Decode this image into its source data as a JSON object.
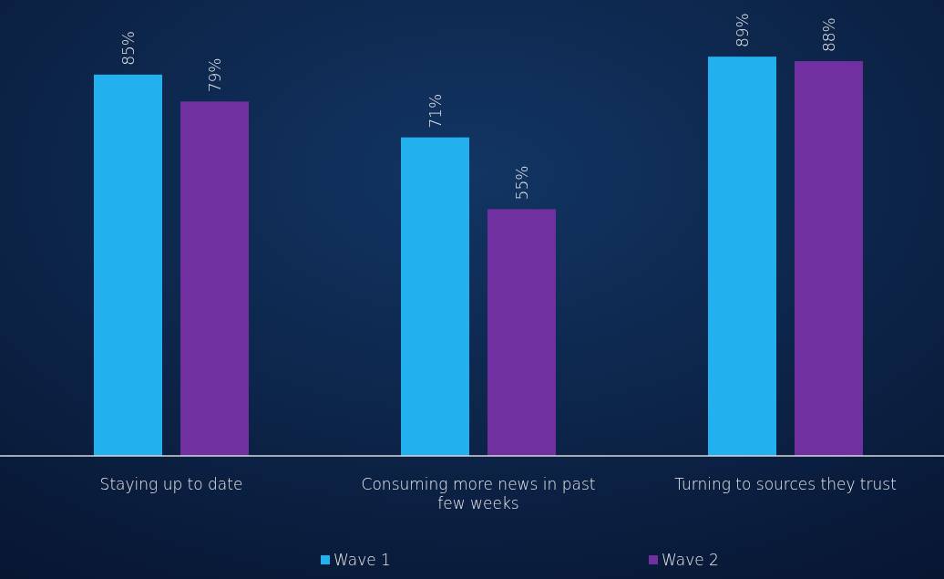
{
  "chart_data": {
    "type": "bar",
    "categories": [
      "Staying up to date",
      "Consuming more news in past few weeks",
      "Turning to sources they trust"
    ],
    "series": [
      {
        "name": "Wave 1",
        "color": "#22b0ee",
        "values": [
          85,
          71,
          89
        ],
        "value_labels": [
          "85%",
          "71%",
          "89%"
        ]
      },
      {
        "name": "Wave 2",
        "color": "#7030a0",
        "values": [
          79,
          55,
          88
        ],
        "value_labels": [
          "79%",
          "55%",
          "88%"
        ]
      }
    ],
    "legend": "bottom",
    "grid": false
  }
}
